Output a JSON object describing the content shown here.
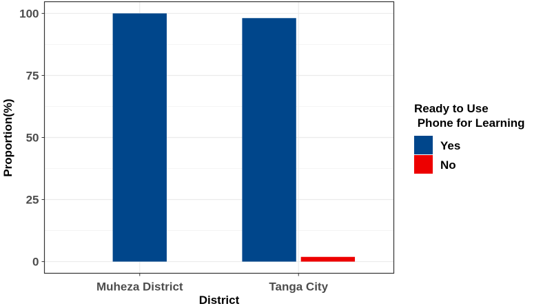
{
  "chart_data": {
    "type": "bar",
    "title": "",
    "xlabel": "District",
    "ylabel": "Proportion(%)",
    "categories": [
      "Muheza District",
      "Tanga City"
    ],
    "series": [
      {
        "name": "Yes",
        "color": "#00468B",
        "values": [
          100,
          98.1
        ]
      },
      {
        "name": "No",
        "color": "#ED0000",
        "values": [
          null,
          1.9
        ]
      }
    ],
    "ylim": [
      0,
      100
    ],
    "yticks": [
      "0",
      "25",
      "50",
      "75",
      "100"
    ],
    "grid": true,
    "legend": {
      "title_line1": "Ready to Use",
      "title_line2": " Phone for Learning",
      "position": "right"
    }
  }
}
